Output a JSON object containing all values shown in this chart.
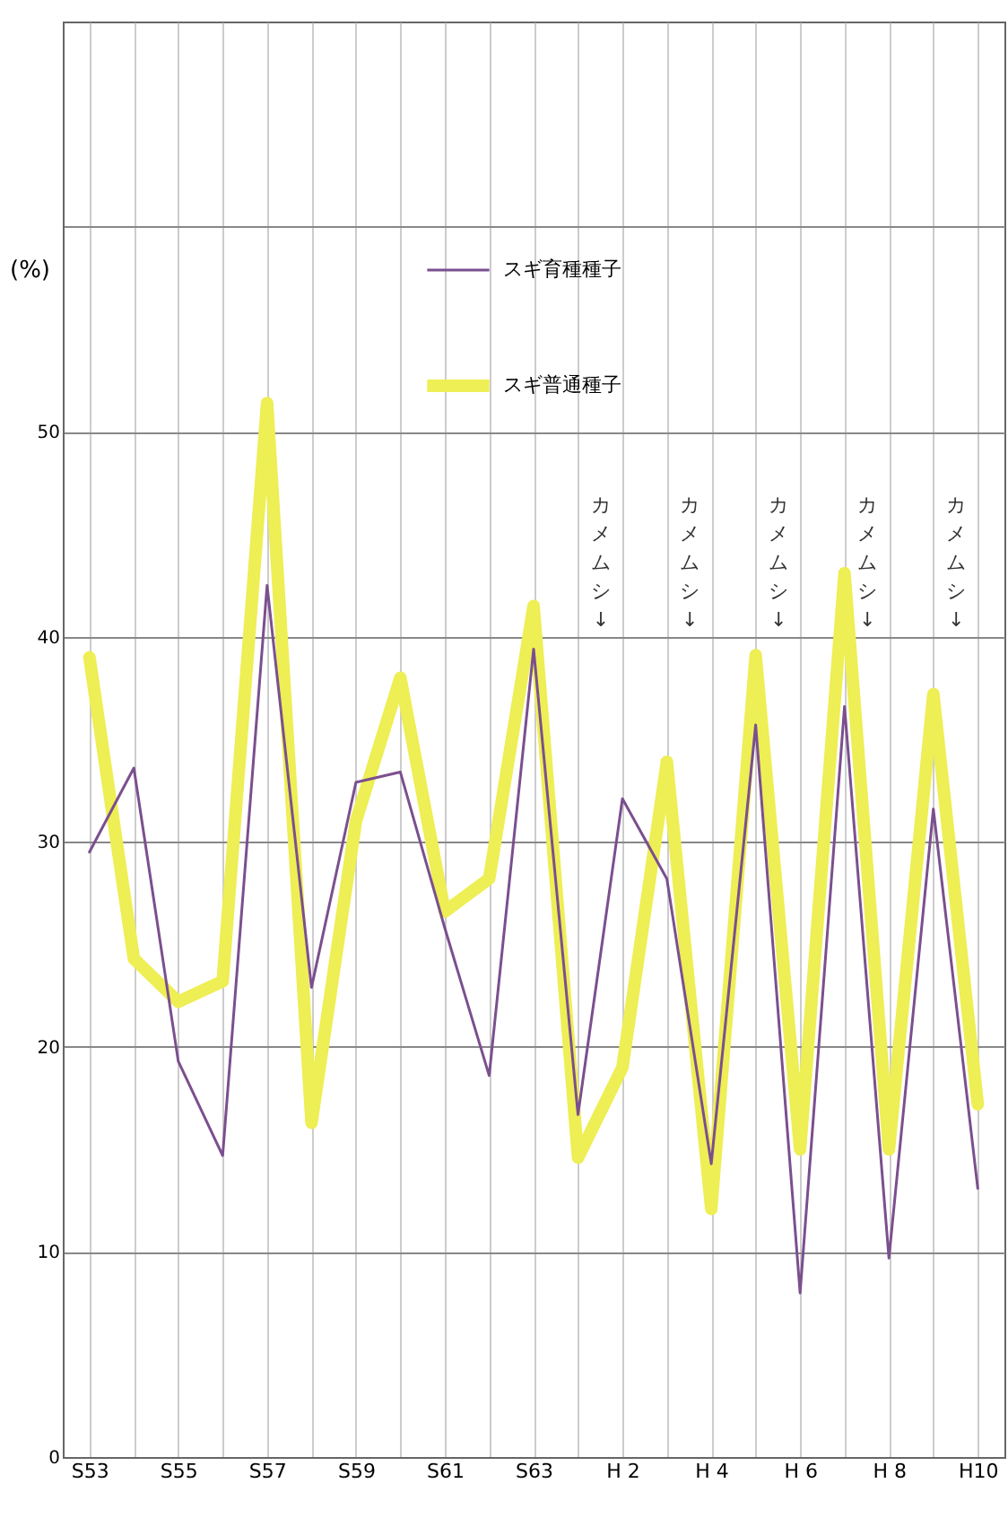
{
  "chart_data": {
    "type": "line",
    "ylabel": "(%)",
    "categories": [
      "S53",
      null,
      "S55",
      null,
      "S57",
      null,
      "S59",
      null,
      "S61",
      null,
      "S63",
      null,
      "H 2",
      null,
      "H 4",
      null,
      "H 6",
      null,
      "H 8",
      null,
      "H10"
    ],
    "series": [
      {
        "name": "スギ育種種子",
        "color": "#7b4f8e",
        "values": [
          29.5,
          33.6,
          19.3,
          14.7,
          42.5,
          22.9,
          32.9,
          33.4,
          25.8,
          18.6,
          39.4,
          16.7,
          32.1,
          28.2,
          14.3,
          35.7,
          8.0,
          36.6,
          9.7,
          31.6,
          13.1
        ]
      },
      {
        "name": "スギ普通種子",
        "color": "#eeee55",
        "values": [
          39.0,
          24.3,
          22.2,
          23.2,
          51.4,
          16.3,
          31.0,
          38.0,
          26.6,
          28.2,
          41.5,
          14.6,
          19.0,
          33.9,
          12.1,
          39.1,
          15.0,
          43.1,
          15.0,
          37.2,
          17.2
        ]
      }
    ],
    "ylim": [
      0,
      70
    ],
    "yticks": [
      0,
      10,
      20,
      30,
      40,
      50,
      {
        "value": 60,
        "label": null
      }
    ],
    "grid": true,
    "legend": "top",
    "annotations": [
      "カメムシ↓",
      "カメムシ↓",
      "カメムシ↓",
      "カメムシ↓",
      "カメムシ↓"
    ]
  }
}
